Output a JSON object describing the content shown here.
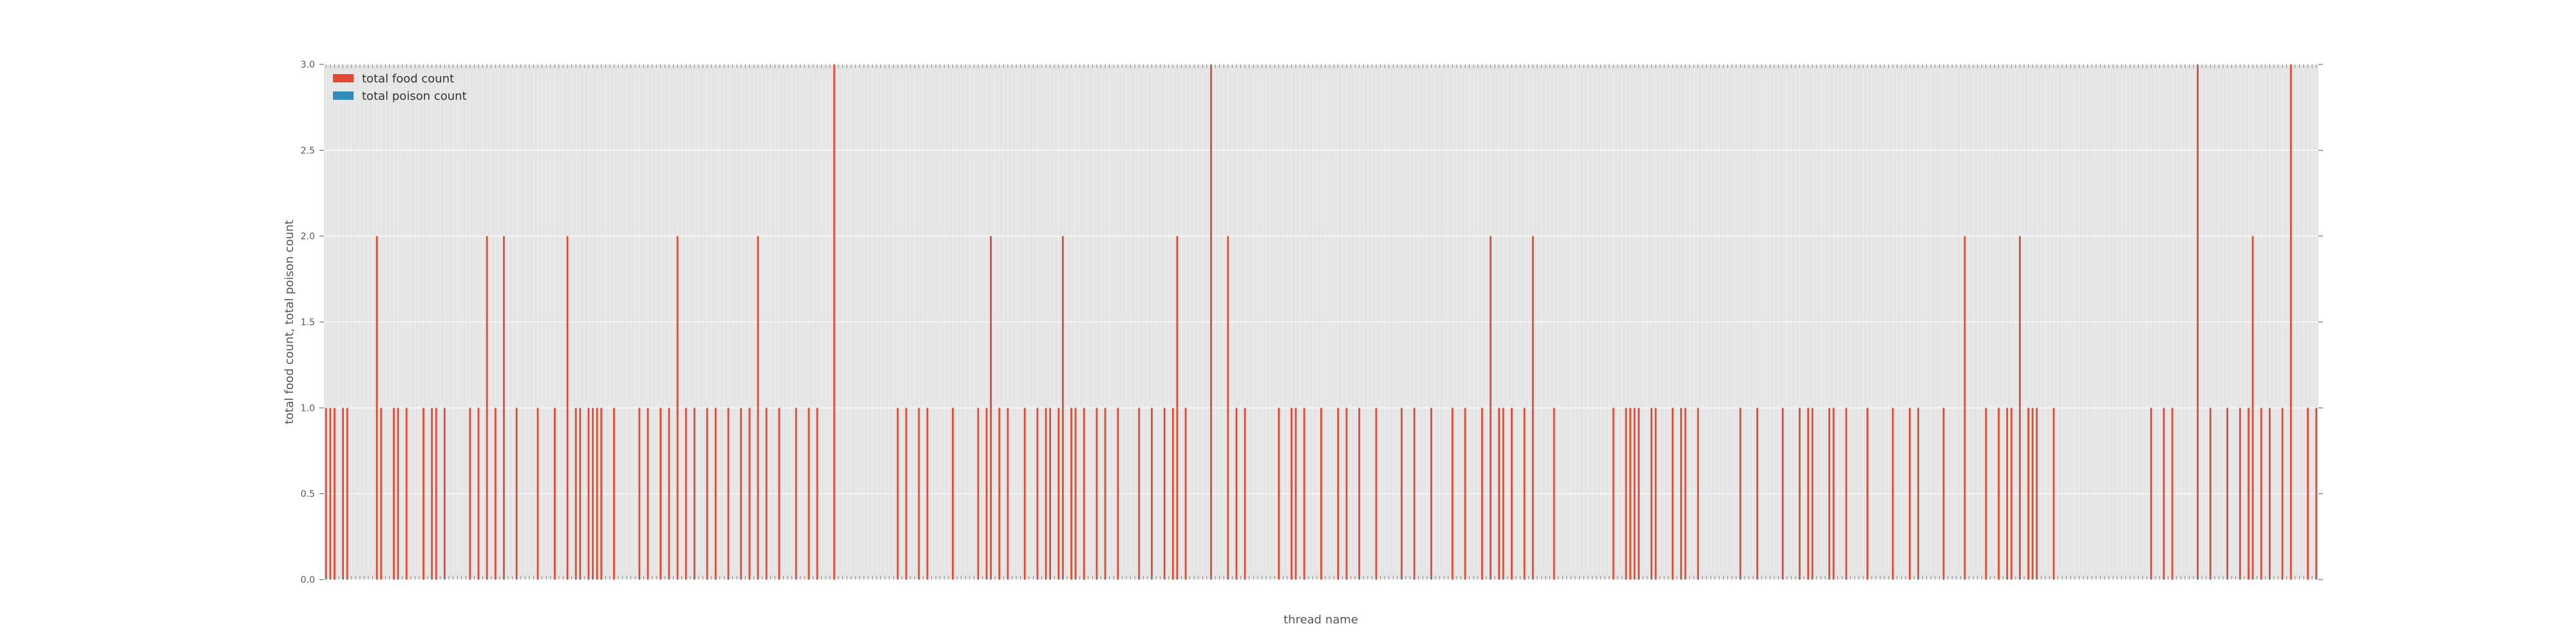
{
  "chart_data": {
    "type": "bar",
    "xlabel": "thread name",
    "ylabel": "total food count, total poison count",
    "ylim": [
      0,
      3.0
    ],
    "yticks": [
      "0.0",
      "0.5",
      "1.0",
      "1.5",
      "2.0",
      "2.5",
      "3.0"
    ],
    "grid": true,
    "legend_position": "top-left",
    "series": [
      {
        "name": "total food count",
        "color": "#E24A33",
        "values": [
          1,
          1,
          1,
          0,
          1,
          1,
          0,
          0,
          0,
          0,
          0,
          0,
          2,
          1,
          0,
          0,
          1,
          1,
          0,
          1,
          0,
          0,
          0,
          1,
          0,
          1,
          1,
          0,
          1,
          0,
          0,
          0,
          0,
          0,
          1,
          0,
          1,
          0,
          2,
          0,
          1,
          0,
          2,
          0,
          0,
          1,
          0,
          0,
          0,
          0,
          1,
          0,
          0,
          0,
          1,
          0,
          0,
          2,
          0,
          1,
          1,
          0,
          1,
          1,
          1,
          1,
          0,
          0,
          1,
          0,
          0,
          0,
          0,
          0,
          1,
          0,
          1,
          0,
          0,
          1,
          0,
          1,
          0,
          2,
          0,
          1,
          0,
          1,
          0,
          0,
          1,
          0,
          1,
          0,
          0,
          1,
          0,
          0,
          1,
          0,
          1,
          0,
          2,
          0,
          1,
          0,
          0,
          1,
          0,
          0,
          0,
          1,
          0,
          0,
          1,
          0,
          1,
          0,
          0,
          0,
          3,
          0,
          0,
          0,
          0,
          0,
          0,
          0,
          0,
          0,
          0,
          0,
          0,
          0,
          0,
          1,
          0,
          1,
          0,
          0,
          1,
          0,
          1,
          0,
          0,
          0,
          0,
          0,
          1,
          0,
          0,
          0,
          0,
          0,
          1,
          0,
          1,
          2,
          0,
          1,
          0,
          1,
          0,
          0,
          0,
          1,
          0,
          0,
          1,
          0,
          1,
          1,
          0,
          1,
          2,
          0,
          1,
          1,
          0,
          1,
          0,
          0,
          1,
          0,
          1,
          0,
          0,
          1,
          0,
          0,
          0,
          0,
          1,
          0,
          0,
          1,
          0,
          0,
          1,
          0,
          1,
          2,
          0,
          1,
          0,
          0,
          0,
          0,
          0,
          3,
          0,
          0,
          0,
          2,
          0,
          1,
          0,
          1,
          0,
          0,
          0,
          0,
          0,
          0,
          0,
          1,
          0,
          0,
          1,
          1,
          0,
          1,
          0,
          0,
          0,
          1,
          0,
          0,
          0,
          1,
          0,
          1,
          0,
          0,
          1,
          0,
          0,
          0,
          1,
          0,
          0,
          0,
          0,
          0,
          1,
          0,
          0,
          1,
          0,
          0,
          0,
          1,
          0,
          0,
          0,
          0,
          1,
          0,
          0,
          1,
          0,
          0,
          0,
          1,
          0,
          2,
          0,
          1,
          1,
          0,
          1,
          0,
          0,
          1,
          0,
          2,
          0,
          0,
          0,
          0,
          1,
          0,
          0,
          0,
          0,
          0,
          0,
          0,
          0,
          0,
          0,
          0,
          0,
          0,
          1,
          0,
          0,
          1,
          1,
          1,
          1,
          0,
          0,
          1,
          1,
          0,
          0,
          0,
          1,
          0,
          1,
          1,
          0,
          0,
          1,
          0,
          0,
          0,
          0,
          0,
          0,
          0,
          0,
          0,
          1,
          0,
          0,
          0,
          1,
          0,
          0,
          0,
          0,
          0,
          1,
          0,
          0,
          0,
          1,
          0,
          1,
          1,
          0,
          0,
          0,
          1,
          1,
          0,
          0,
          1,
          0,
          0,
          0,
          0,
          1,
          0,
          0,
          0,
          0,
          0,
          1,
          0,
          0,
          0,
          1,
          0,
          1,
          0,
          0,
          0,
          0,
          0,
          1,
          0,
          0,
          0,
          0,
          2,
          0,
          0,
          0,
          0,
          1,
          0,
          0,
          1,
          0,
          1,
          1,
          0,
          2,
          0,
          1,
          1,
          1,
          0,
          0,
          0,
          1,
          0,
          0,
          0,
          0,
          0,
          0,
          0,
          0,
          0,
          0,
          0,
          0,
          0,
          0,
          0,
          0,
          0,
          0,
          0,
          0,
          0,
          0,
          1,
          0,
          0,
          1,
          0,
          1,
          0,
          0,
          0,
          0,
          0,
          3,
          0,
          0,
          1,
          0,
          0,
          0,
          1,
          0,
          0,
          1,
          0,
          1,
          2,
          0,
          1,
          0,
          1,
          0,
          0,
          1,
          0,
          3,
          0,
          0,
          0,
          1,
          0,
          1
        ]
      },
      {
        "name": "total poison count",
        "color": "#348ABD",
        "values": []
      }
    ]
  }
}
